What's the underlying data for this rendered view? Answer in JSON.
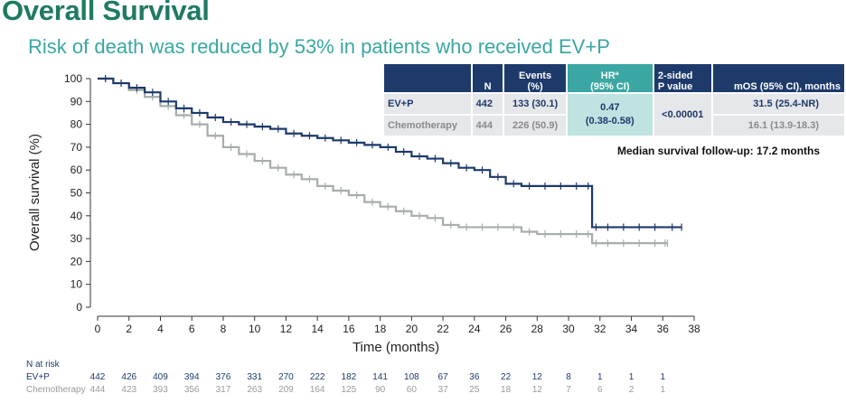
{
  "header": {
    "title": "Overall Survival",
    "subtitle": "Risk of death was reduced by 53% in patients who received EV+P"
  },
  "stats_table": {
    "headers": [
      "N",
      "Events\n(%)",
      "HRª\n(95% CI)",
      "2-sided\nP value",
      "mOS (95% CI), months"
    ],
    "rows": [
      {
        "arm": "EV+P",
        "n": "442",
        "events": "133 (30.1)",
        "mos": "31.5 (25.4-NR)"
      },
      {
        "arm": "Chemotherapy",
        "n": "444",
        "events": "226 (50.9)",
        "mos": "16.1 (13.9-18.3)"
      }
    ],
    "hr": "0.47",
    "hr_ci": "(0.38-0.58)",
    "p_value": "<0.00001"
  },
  "followup": "Median survival follow-up: 17.2 months",
  "risk_table": {
    "label": "N at risk",
    "rows": [
      {
        "arm": "EV+P",
        "values": [
          "442",
          "426",
          "409",
          "394",
          "376",
          "331",
          "270",
          "222",
          "182",
          "141",
          "108",
          "67",
          "36",
          "22",
          "12",
          "8",
          "1",
          "1",
          "1"
        ]
      },
      {
        "arm": "Chemotherapy",
        "values": [
          "444",
          "423",
          "393",
          "356",
          "317",
          "263",
          "209",
          "164",
          "125",
          "90",
          "60",
          "37",
          "25",
          "18",
          "12",
          "7",
          "6",
          "2",
          "1"
        ]
      }
    ]
  },
  "colors": {
    "evp": "#1d3a6b",
    "chemo": "#a6adaa",
    "title": "#1f7a63",
    "subtitle": "#3aa7a3"
  },
  "chart_data": {
    "type": "line",
    "xlabel": "Time (months)",
    "ylabel": "Overall survival (%)",
    "xlim": [
      0,
      38
    ],
    "ylim": [
      0,
      100
    ],
    "xticks": [
      0,
      2,
      4,
      6,
      8,
      10,
      12,
      14,
      16,
      18,
      20,
      22,
      24,
      26,
      28,
      30,
      32,
      34,
      36,
      38
    ],
    "yticks": [
      0,
      10,
      20,
      30,
      40,
      50,
      60,
      70,
      80,
      90,
      100
    ],
    "step": true,
    "series": [
      {
        "name": "EV+P",
        "x": [
          0,
          1,
          2,
          3,
          4,
          5,
          6,
          7,
          8,
          9,
          10,
          11,
          12,
          13,
          14,
          15,
          16,
          17,
          18,
          19,
          20,
          21,
          22,
          23,
          24,
          25,
          26,
          27,
          28,
          29,
          30,
          31,
          31.5,
          32,
          33,
          34,
          35,
          36,
          37.2
        ],
        "y": [
          100,
          98,
          96,
          94,
          90,
          87,
          85,
          83,
          81,
          80,
          79,
          78,
          76,
          75,
          74,
          73,
          72,
          71,
          70,
          68,
          66,
          65,
          63,
          61,
          60,
          57,
          54,
          53,
          53,
          53,
          53,
          53,
          35,
          35,
          35,
          35,
          35,
          35,
          35
        ]
      },
      {
        "name": "Chemotherapy",
        "x": [
          0,
          1,
          2,
          3,
          4,
          5,
          6,
          7,
          8,
          9,
          10,
          11,
          12,
          13,
          14,
          15,
          16,
          17,
          18,
          19,
          20,
          21,
          22,
          23,
          24,
          25,
          26,
          27,
          28,
          29,
          30,
          31,
          31.5,
          32,
          33,
          34,
          35,
          36,
          36.3
        ],
        "y": [
          100,
          98,
          95,
          92,
          88,
          84,
          80,
          75,
          70,
          67,
          64,
          61,
          58,
          56,
          53,
          51,
          49,
          46,
          44,
          42,
          40,
          39,
          36,
          35,
          35,
          35,
          35,
          33,
          32,
          32,
          32,
          32,
          28,
          28,
          28,
          28,
          28,
          28,
          28
        ]
      }
    ]
  }
}
